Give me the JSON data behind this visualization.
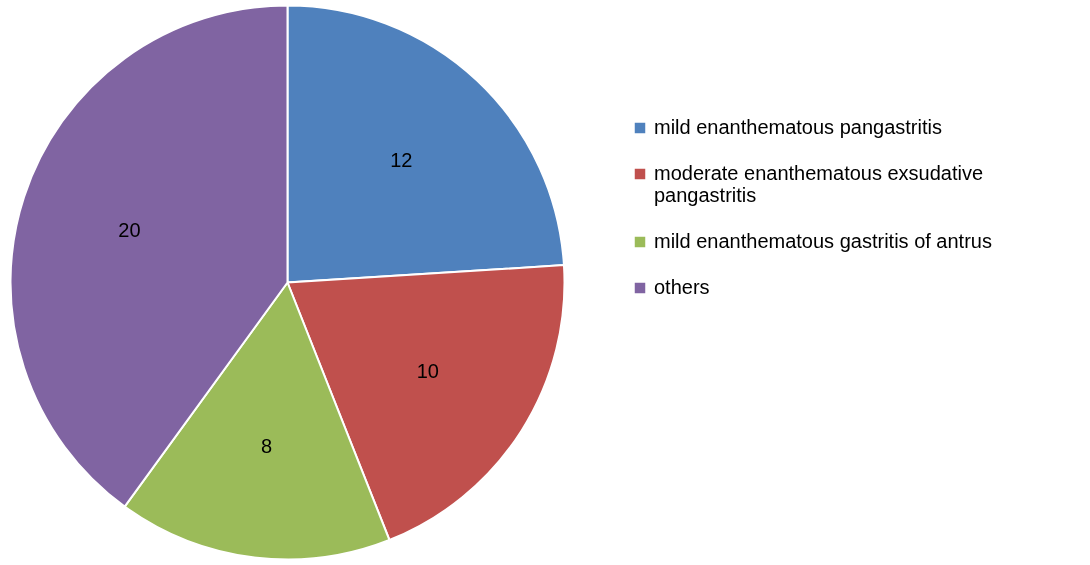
{
  "chart_data": {
    "type": "pie",
    "categories": [
      "mild enanthematous pangastritis",
      "moderate enanthematous exsudative pangastritis",
      "mild  enanthematous gastritis of antrus",
      "others"
    ],
    "values": [
      12,
      10,
      8,
      20
    ],
    "colors": [
      "#4f81bd",
      "#c0504d",
      "#9bbb59",
      "#8064a2"
    ],
    "data_labels": true,
    "legend": "right"
  }
}
